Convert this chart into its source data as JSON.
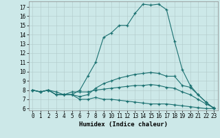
{
  "title": "",
  "xlabel": "Humidex (Indice chaleur)",
  "bg_color": "#cce8e8",
  "grid_color": "#b0c8c8",
  "line_color": "#1a7070",
  "marker": "+",
  "xlim": [
    -0.5,
    23.5
  ],
  "ylim": [
    5.8,
    17.6
  ],
  "xticks": [
    0,
    1,
    2,
    3,
    4,
    5,
    6,
    7,
    8,
    9,
    10,
    11,
    12,
    13,
    14,
    15,
    16,
    17,
    18,
    19,
    20,
    21,
    22,
    23
  ],
  "yticks": [
    6,
    7,
    8,
    9,
    10,
    11,
    12,
    13,
    14,
    15,
    16,
    17
  ],
  "series": [
    [
      8,
      7.8,
      8,
      7.5,
      7.5,
      7.5,
      8,
      9.5,
      11,
      13.7,
      14.2,
      15,
      15,
      16.3,
      17.3,
      17.2,
      17.3,
      16.7,
      13.3,
      10.2,
      8.5,
      7.5,
      6.7,
      6
    ],
    [
      8,
      7.8,
      8,
      7.5,
      7.5,
      7.5,
      7.3,
      7.5,
      8.2,
      8.7,
      9,
      9.3,
      9.5,
      9.7,
      9.8,
      9.9,
      9.8,
      9.5,
      9.5,
      8.5,
      8.3,
      7.5,
      6.7,
      6
    ],
    [
      8,
      7.8,
      8,
      7.8,
      7.5,
      7.8,
      7.8,
      7.8,
      8,
      8.1,
      8.2,
      8.3,
      8.4,
      8.5,
      8.5,
      8.6,
      8.5,
      8.3,
      8.2,
      7.8,
      7.5,
      7.0,
      6.5,
      6.1
    ],
    [
      8,
      7.8,
      8,
      7.5,
      7.5,
      7.5,
      7.0,
      7.0,
      7.2,
      7.0,
      7.0,
      6.9,
      6.8,
      6.7,
      6.6,
      6.5,
      6.5,
      6.5,
      6.4,
      6.3,
      6.2,
      6.1,
      6.0,
      6.0
    ]
  ]
}
